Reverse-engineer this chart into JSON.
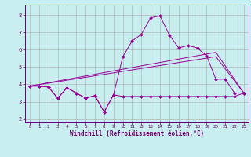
{
  "bg_color": "#c8eef0",
  "grid_color": "#aaaaaa",
  "line_color": "#990099",
  "tick_color": "#660066",
  "spine_color": "#660066",
  "xlabel": "Windchill (Refroidissement éolien,°C)",
  "xlabel_fontsize": 5.5,
  "xlabel_color": "#660066",
  "yticks": [
    2,
    3,
    4,
    5,
    6,
    7,
    8
  ],
  "xticks": [
    0,
    1,
    2,
    3,
    4,
    5,
    6,
    7,
    8,
    9,
    10,
    11,
    12,
    13,
    14,
    15,
    16,
    17,
    18,
    19,
    20,
    21,
    22,
    23
  ],
  "xlim": [
    -0.5,
    23.5
  ],
  "ylim": [
    1.8,
    8.6
  ],
  "jagged_x": [
    0,
    1,
    2,
    3,
    4,
    5,
    6,
    7,
    8,
    9,
    10,
    11,
    12,
    13,
    14,
    15,
    16,
    17,
    18,
    19,
    20,
    21,
    22,
    23
  ],
  "jagged_y": [
    3.9,
    3.9,
    3.85,
    3.2,
    3.8,
    3.5,
    3.2,
    3.35,
    2.4,
    3.4,
    3.3,
    3.3,
    3.3,
    3.3,
    3.3,
    3.3,
    3.3,
    3.3,
    3.3,
    3.3,
    3.3,
    3.3,
    3.3,
    3.5
  ],
  "curve_x": [
    0,
    1,
    2,
    3,
    4,
    5,
    6,
    7,
    8,
    9,
    10,
    11,
    12,
    13,
    14,
    15,
    16,
    17,
    18,
    19,
    20,
    21,
    22,
    23
  ],
  "curve_y": [
    3.9,
    3.9,
    3.85,
    3.2,
    3.8,
    3.5,
    3.2,
    3.35,
    2.4,
    3.4,
    5.6,
    6.5,
    6.9,
    7.85,
    7.95,
    6.85,
    6.1,
    6.25,
    6.1,
    5.65,
    4.3,
    4.3,
    3.5,
    3.5
  ],
  "trend1_x": [
    0,
    20,
    23
  ],
  "trend1_y": [
    3.9,
    5.6,
    3.5
  ],
  "trend2_x": [
    0,
    20,
    23
  ],
  "trend2_y": [
    3.9,
    5.85,
    3.5
  ]
}
